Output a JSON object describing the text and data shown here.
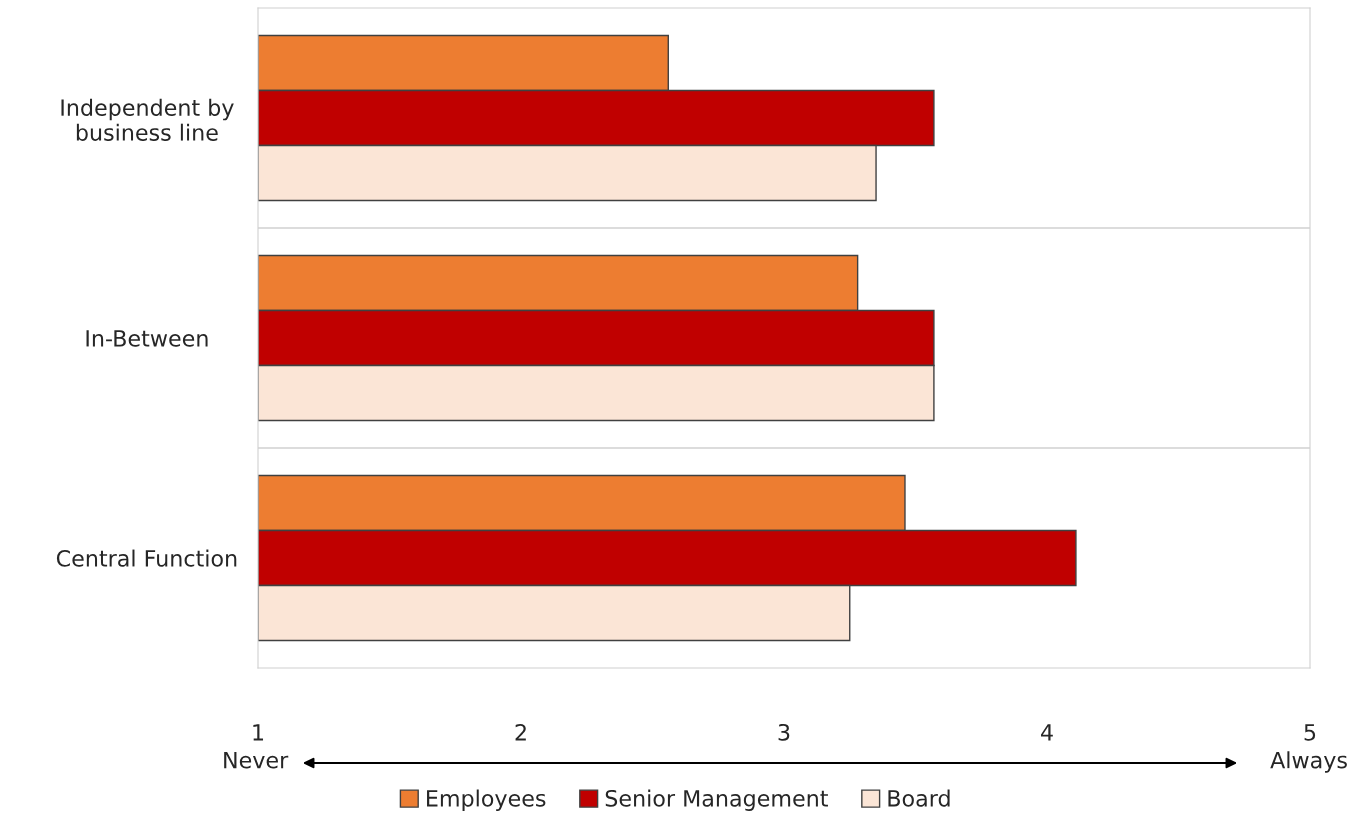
{
  "chart_data": {
    "type": "bar",
    "orientation": "horizontal",
    "categories": [
      "Independent by\nbusiness line",
      "In-Between",
      "Central Function"
    ],
    "series": [
      {
        "name": "Employees",
        "color": "#ed7d31",
        "values": [
          2.56,
          3.28,
          3.46
        ]
      },
      {
        "name": "Senior Management",
        "color": "#c00000",
        "values": [
          3.57,
          3.57,
          4.11
        ]
      },
      {
        "name": "Board",
        "color": "#fbe5d6",
        "values": [
          3.35,
          3.57,
          3.25
        ]
      }
    ],
    "xlim": [
      1,
      5
    ],
    "xticks": [
      1,
      2,
      3,
      4,
      5
    ],
    "grid": "y",
    "legend": "bottom",
    "annotations": [
      "Never",
      "Always"
    ]
  }
}
